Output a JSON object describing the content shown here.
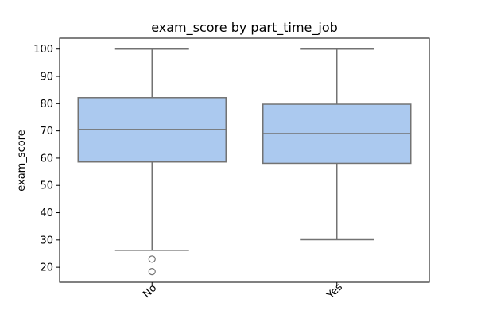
{
  "chart_data": {
    "type": "boxplot",
    "title": "exam_score by part_time_job",
    "xlabel": "part_time_job",
    "ylabel": "exam_score",
    "categories": [
      "No",
      "Yes"
    ],
    "ylim": [
      14.5,
      104.0
    ],
    "yticks": [
      20,
      30,
      40,
      50,
      60,
      70,
      80,
      90,
      100
    ],
    "grid": false,
    "box_color": "#abc9ef",
    "line_color": "#737373",
    "boxes": [
      {
        "category": "No",
        "whisker_low": 26.2,
        "q1": 58.6,
        "median": 70.5,
        "q3": 82.2,
        "whisker_high": 100,
        "outliers": [
          23.0,
          18.4
        ]
      },
      {
        "category": "Yes",
        "whisker_low": 30.1,
        "q1": 58.1,
        "median": 69.0,
        "q3": 79.8,
        "whisker_high": 100,
        "outliers": []
      }
    ]
  }
}
